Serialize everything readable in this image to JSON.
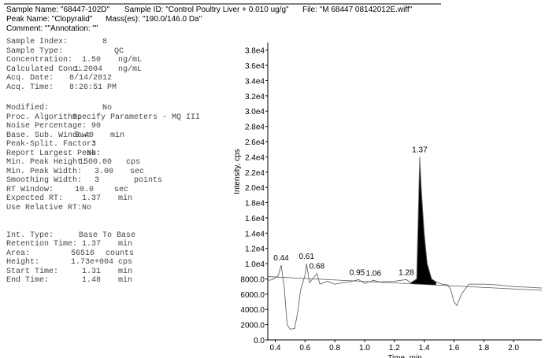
{
  "header": {
    "line1": [
      "Sample Name: \"68447-102D\"",
      "Sample ID: \"Control Poultry Liver + 0.010 ug/g\"",
      "File: \"M 68447 08142012E.wiff\""
    ],
    "line2": [
      "Peak Name: \"Clopyralid\"",
      "Mass(es): \"190.0/146.0 Da\""
    ],
    "line3": [
      "Comment: \"\"",
      "Annotation: \"\""
    ]
  },
  "parameters": [
    [
      "Sample Index:",
      "8"
    ],
    [
      "Sample Type:",
      "QC"
    ],
    [
      "Concentration:",
      "1.50",
      "ng/mL"
    ],
    [
      "Calculated Conc:",
      "1.2004",
      "ng/mL"
    ],
    [
      "Acq. Date:",
      "8/14/2012"
    ],
    [
      "Acq. Time:",
      "8:26:51 PM"
    ],
    [
      "Modified:",
      "No"
    ],
    [
      "Proc. Algorithm:",
      "Specify Parameters - MQ III"
    ],
    [
      "Noise Percentage:",
      "90"
    ],
    [
      "Base. Sub. Window:",
      "0.40",
      "min"
    ],
    [
      "Peak-Split. Factor:",
      "3"
    ],
    [
      "Report Largest Peak:",
      "No"
    ],
    [
      "Min. Peak Height:",
      "1500.00",
      "cps"
    ],
    [
      "Min. Peak Width:",
      "3.00",
      "sec"
    ],
    [
      "Smoothing Width:",
      "3",
      "points"
    ],
    [
      "RT Window:",
      "10.0",
      "sec"
    ],
    [
      "Expected RT:",
      "1.37",
      "min"
    ],
    [
      "Use Relative RT:",
      "No"
    ],
    [
      "Int. Type:",
      "Base To Base"
    ],
    [
      "Retention Time:",
      "1.37",
      "min"
    ],
    [
      "Area:",
      "56516",
      "counts"
    ],
    [
      "Height:",
      "1.73e+004",
      "cps"
    ],
    [
      "Start Time:",
      "1.31",
      "min"
    ],
    [
      "End Time:",
      "1.48",
      "min"
    ]
  ],
  "chart_data": {
    "type": "line",
    "x_label": "Time, min",
    "y_label": "Intensity, cps",
    "xlim": [
      0.35,
      2.19
    ],
    "ylim": [
      0,
      39000
    ],
    "xticks": [
      0.4,
      0.6,
      0.8,
      {
        "value": 1.0,
        "label": "1.0"
      },
      1.2,
      1.4,
      1.6,
      1.8,
      {
        "value": 2.0,
        "label": "2.0"
      }
    ],
    "yticks": [
      {
        "value": 0,
        "label": "0.0"
      },
      {
        "value": 2000,
        "label": "2000.0"
      },
      {
        "value": 4000,
        "label": "4000.0"
      },
      {
        "value": 6000,
        "label": "6000.0"
      },
      {
        "value": 8000,
        "label": "8000.0"
      },
      {
        "value": 10000,
        "label": "1.0e4"
      },
      {
        "value": 12000,
        "label": "1.2e4"
      },
      {
        "value": 14000,
        "label": "1.4e4"
      },
      {
        "value": 16000,
        "label": "1.6e4"
      },
      {
        "value": 18000,
        "label": "1.8e4"
      },
      {
        "value": 20000,
        "label": "2.0e4"
      },
      {
        "value": 22000,
        "label": "2.2e4"
      },
      {
        "value": 24000,
        "label": "2.4e4"
      },
      {
        "value": 26000,
        "label": "2.6e4"
      },
      {
        "value": 28000,
        "label": "2.8e4"
      },
      {
        "value": 30000,
        "label": "3.0e4"
      },
      {
        "value": 32000,
        "label": "3.2e4"
      },
      {
        "value": 34000,
        "label": "3.4e4"
      },
      {
        "value": 36000,
        "label": "3.6e4"
      },
      {
        "value": 38000,
        "label": "3.8e4"
      }
    ],
    "series": [
      {
        "color": "#666666",
        "x": [
          0.35,
          0.38,
          0.42,
          0.44,
          0.46,
          0.48,
          0.5,
          0.53,
          0.55,
          0.57,
          0.6,
          0.61,
          0.63,
          0.66,
          0.68,
          0.7,
          0.75,
          0.8,
          0.85,
          0.9,
          0.96,
          1.0,
          1.06,
          1.1,
          1.2,
          1.28,
          1.31,
          1.35,
          1.37,
          1.38,
          1.4,
          1.42,
          1.45,
          1.48,
          1.52,
          1.56,
          1.58,
          1.6,
          1.62,
          1.65,
          1.7,
          1.8,
          1.9,
          2.0,
          2.1,
          2.19
        ],
        "values": [
          7800,
          7900,
          8400,
          9800,
          7000,
          2000,
          1400,
          1500,
          3500,
          6500,
          8500,
          10000,
          7500,
          8200,
          8700,
          7300,
          7700,
          7300,
          7500,
          7600,
          7900,
          7400,
          7800,
          7600,
          7700,
          7900,
          7500,
          8000,
          24000,
          20000,
          14000,
          10000,
          8000,
          7600,
          7300,
          7200,
          6500,
          5000,
          4500,
          6000,
          7300,
          7300,
          7200,
          7000,
          6900,
          6800
        ]
      }
    ],
    "baseline": {
      "x": [
        0.35,
        2.19
      ],
      "values": [
        8300,
        6500
      ]
    },
    "peak_fill_color": "#000000",
    "annotations": [
      {
        "x": 0.44,
        "y": 9800
      },
      {
        "x": 0.61,
        "y": 10000
      },
      {
        "x": 0.68,
        "y": 8700
      },
      {
        "x": 0.95,
        "y": 7900
      },
      {
        "x": 1.06,
        "y": 7800
      },
      {
        "x": 1.28,
        "y": 7900
      },
      {
        "x": 1.37,
        "y": 24000
      }
    ]
  }
}
